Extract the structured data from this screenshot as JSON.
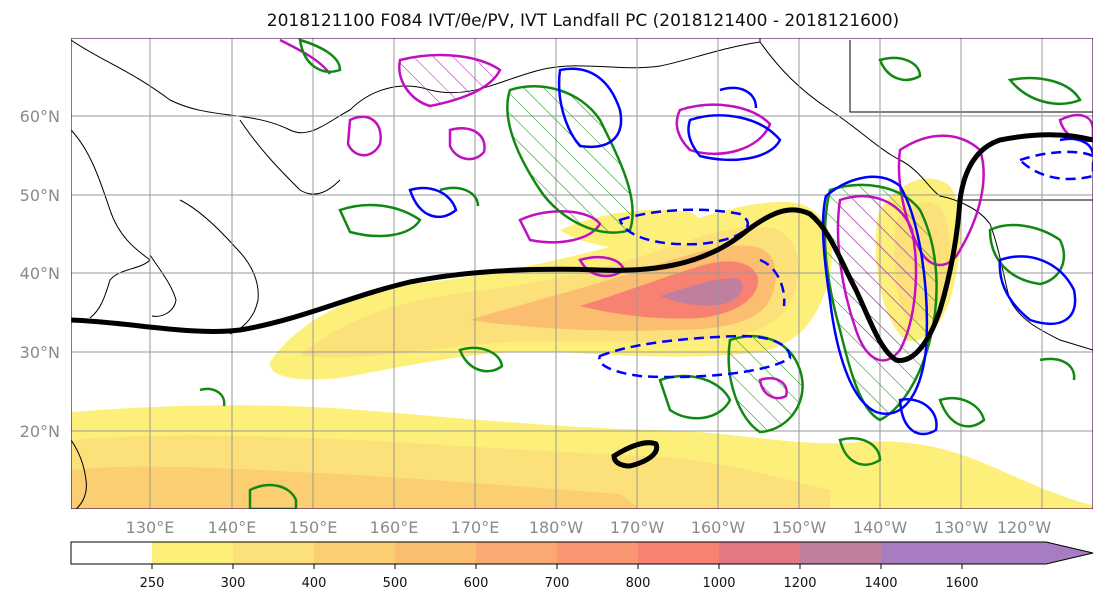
{
  "title": "2018121100 F084 IVT/θe/PV, IVT Landfall PC (2018121400 - 2018121600)",
  "lat_labels": [
    "60°N",
    "50°N",
    "40°N",
    "30°N",
    "20°N"
  ],
  "lon_labels": [
    "130°E",
    "140°E",
    "150°E",
    "160°E",
    "170°E",
    "180°W",
    "170°W",
    "160°W",
    "150°W",
    "140°W",
    "130°W",
    "120°W"
  ],
  "colorbar": {
    "ticks": [
      "250",
      "300",
      "400",
      "500",
      "600",
      "700",
      "800",
      "1000",
      "1200",
      "1400",
      "1600"
    ],
    "colors": [
      "#ffffff",
      "#fdf07a",
      "#fce07a",
      "#fbce72",
      "#fbbd6f",
      "#fba972",
      "#fb9672",
      "#f88272",
      "#e47784",
      "#c07f9e",
      "#a77cc0"
    ],
    "extend": "max"
  },
  "colors": {
    "black_contour": "#000000",
    "green_contour": "#118811",
    "blue_contour": "#0000ff",
    "magenta_contour": "#c010c0"
  }
}
